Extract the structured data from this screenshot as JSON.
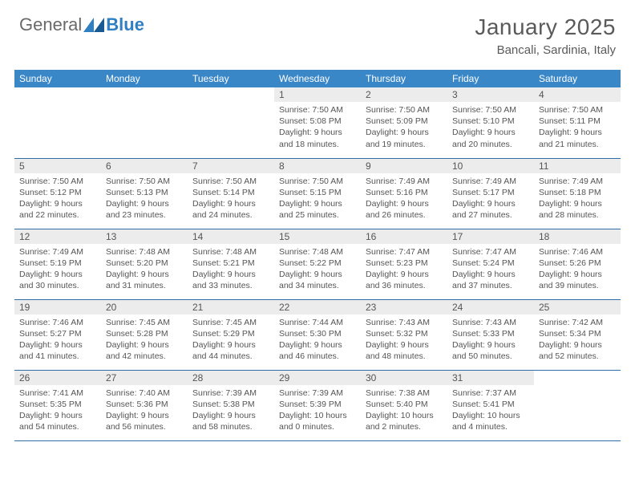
{
  "logo": {
    "text1": "General",
    "text2": "Blue"
  },
  "title": "January 2025",
  "location": "Bancali, Sardinia, Italy",
  "colors": {
    "header_bg": "#3a87c8",
    "header_text": "#ffffff",
    "daynum_bg": "#ececec",
    "border": "#2f6fa8",
    "brand_blue": "#2f7fc2",
    "brand_gray": "#6a6a6a",
    "text": "#555555",
    "background": "#ffffff"
  },
  "fonts": {
    "title_size": 28,
    "location_size": 15,
    "header_size": 12,
    "daynum_size": 12,
    "body_size": 10.5
  },
  "weekdays": [
    "Sunday",
    "Monday",
    "Tuesday",
    "Wednesday",
    "Thursday",
    "Friday",
    "Saturday"
  ],
  "weeks": [
    [
      null,
      null,
      null,
      {
        "n": "1",
        "sunrise": "7:50 AM",
        "sunset": "5:08 PM",
        "day_h": "9",
        "day_m": "18"
      },
      {
        "n": "2",
        "sunrise": "7:50 AM",
        "sunset": "5:09 PM",
        "day_h": "9",
        "day_m": "19"
      },
      {
        "n": "3",
        "sunrise": "7:50 AM",
        "sunset": "5:10 PM",
        "day_h": "9",
        "day_m": "20"
      },
      {
        "n": "4",
        "sunrise": "7:50 AM",
        "sunset": "5:11 PM",
        "day_h": "9",
        "day_m": "21"
      }
    ],
    [
      {
        "n": "5",
        "sunrise": "7:50 AM",
        "sunset": "5:12 PM",
        "day_h": "9",
        "day_m": "22"
      },
      {
        "n": "6",
        "sunrise": "7:50 AM",
        "sunset": "5:13 PM",
        "day_h": "9",
        "day_m": "23"
      },
      {
        "n": "7",
        "sunrise": "7:50 AM",
        "sunset": "5:14 PM",
        "day_h": "9",
        "day_m": "24"
      },
      {
        "n": "8",
        "sunrise": "7:50 AM",
        "sunset": "5:15 PM",
        "day_h": "9",
        "day_m": "25"
      },
      {
        "n": "9",
        "sunrise": "7:49 AM",
        "sunset": "5:16 PM",
        "day_h": "9",
        "day_m": "26"
      },
      {
        "n": "10",
        "sunrise": "7:49 AM",
        "sunset": "5:17 PM",
        "day_h": "9",
        "day_m": "27"
      },
      {
        "n": "11",
        "sunrise": "7:49 AM",
        "sunset": "5:18 PM",
        "day_h": "9",
        "day_m": "28"
      }
    ],
    [
      {
        "n": "12",
        "sunrise": "7:49 AM",
        "sunset": "5:19 PM",
        "day_h": "9",
        "day_m": "30"
      },
      {
        "n": "13",
        "sunrise": "7:48 AM",
        "sunset": "5:20 PM",
        "day_h": "9",
        "day_m": "31"
      },
      {
        "n": "14",
        "sunrise": "7:48 AM",
        "sunset": "5:21 PM",
        "day_h": "9",
        "day_m": "33"
      },
      {
        "n": "15",
        "sunrise": "7:48 AM",
        "sunset": "5:22 PM",
        "day_h": "9",
        "day_m": "34"
      },
      {
        "n": "16",
        "sunrise": "7:47 AM",
        "sunset": "5:23 PM",
        "day_h": "9",
        "day_m": "36"
      },
      {
        "n": "17",
        "sunrise": "7:47 AM",
        "sunset": "5:24 PM",
        "day_h": "9",
        "day_m": "37"
      },
      {
        "n": "18",
        "sunrise": "7:46 AM",
        "sunset": "5:26 PM",
        "day_h": "9",
        "day_m": "39"
      }
    ],
    [
      {
        "n": "19",
        "sunrise": "7:46 AM",
        "sunset": "5:27 PM",
        "day_h": "9",
        "day_m": "41"
      },
      {
        "n": "20",
        "sunrise": "7:45 AM",
        "sunset": "5:28 PM",
        "day_h": "9",
        "day_m": "42"
      },
      {
        "n": "21",
        "sunrise": "7:45 AM",
        "sunset": "5:29 PM",
        "day_h": "9",
        "day_m": "44"
      },
      {
        "n": "22",
        "sunrise": "7:44 AM",
        "sunset": "5:30 PM",
        "day_h": "9",
        "day_m": "46"
      },
      {
        "n": "23",
        "sunrise": "7:43 AM",
        "sunset": "5:32 PM",
        "day_h": "9",
        "day_m": "48"
      },
      {
        "n": "24",
        "sunrise": "7:43 AM",
        "sunset": "5:33 PM",
        "day_h": "9",
        "day_m": "50"
      },
      {
        "n": "25",
        "sunrise": "7:42 AM",
        "sunset": "5:34 PM",
        "day_h": "9",
        "day_m": "52"
      }
    ],
    [
      {
        "n": "26",
        "sunrise": "7:41 AM",
        "sunset": "5:35 PM",
        "day_h": "9",
        "day_m": "54"
      },
      {
        "n": "27",
        "sunrise": "7:40 AM",
        "sunset": "5:36 PM",
        "day_h": "9",
        "day_m": "56"
      },
      {
        "n": "28",
        "sunrise": "7:39 AM",
        "sunset": "5:38 PM",
        "day_h": "9",
        "day_m": "58"
      },
      {
        "n": "29",
        "sunrise": "7:39 AM",
        "sunset": "5:39 PM",
        "day_h": "10",
        "day_m": "0"
      },
      {
        "n": "30",
        "sunrise": "7:38 AM",
        "sunset": "5:40 PM",
        "day_h": "10",
        "day_m": "2"
      },
      {
        "n": "31",
        "sunrise": "7:37 AM",
        "sunset": "5:41 PM",
        "day_h": "10",
        "day_m": "4"
      },
      null
    ]
  ],
  "labels": {
    "sunrise": "Sunrise:",
    "sunset": "Sunset:",
    "daylight": "Daylight:",
    "hours": "hours",
    "and": "and",
    "minutes": "minutes."
  }
}
